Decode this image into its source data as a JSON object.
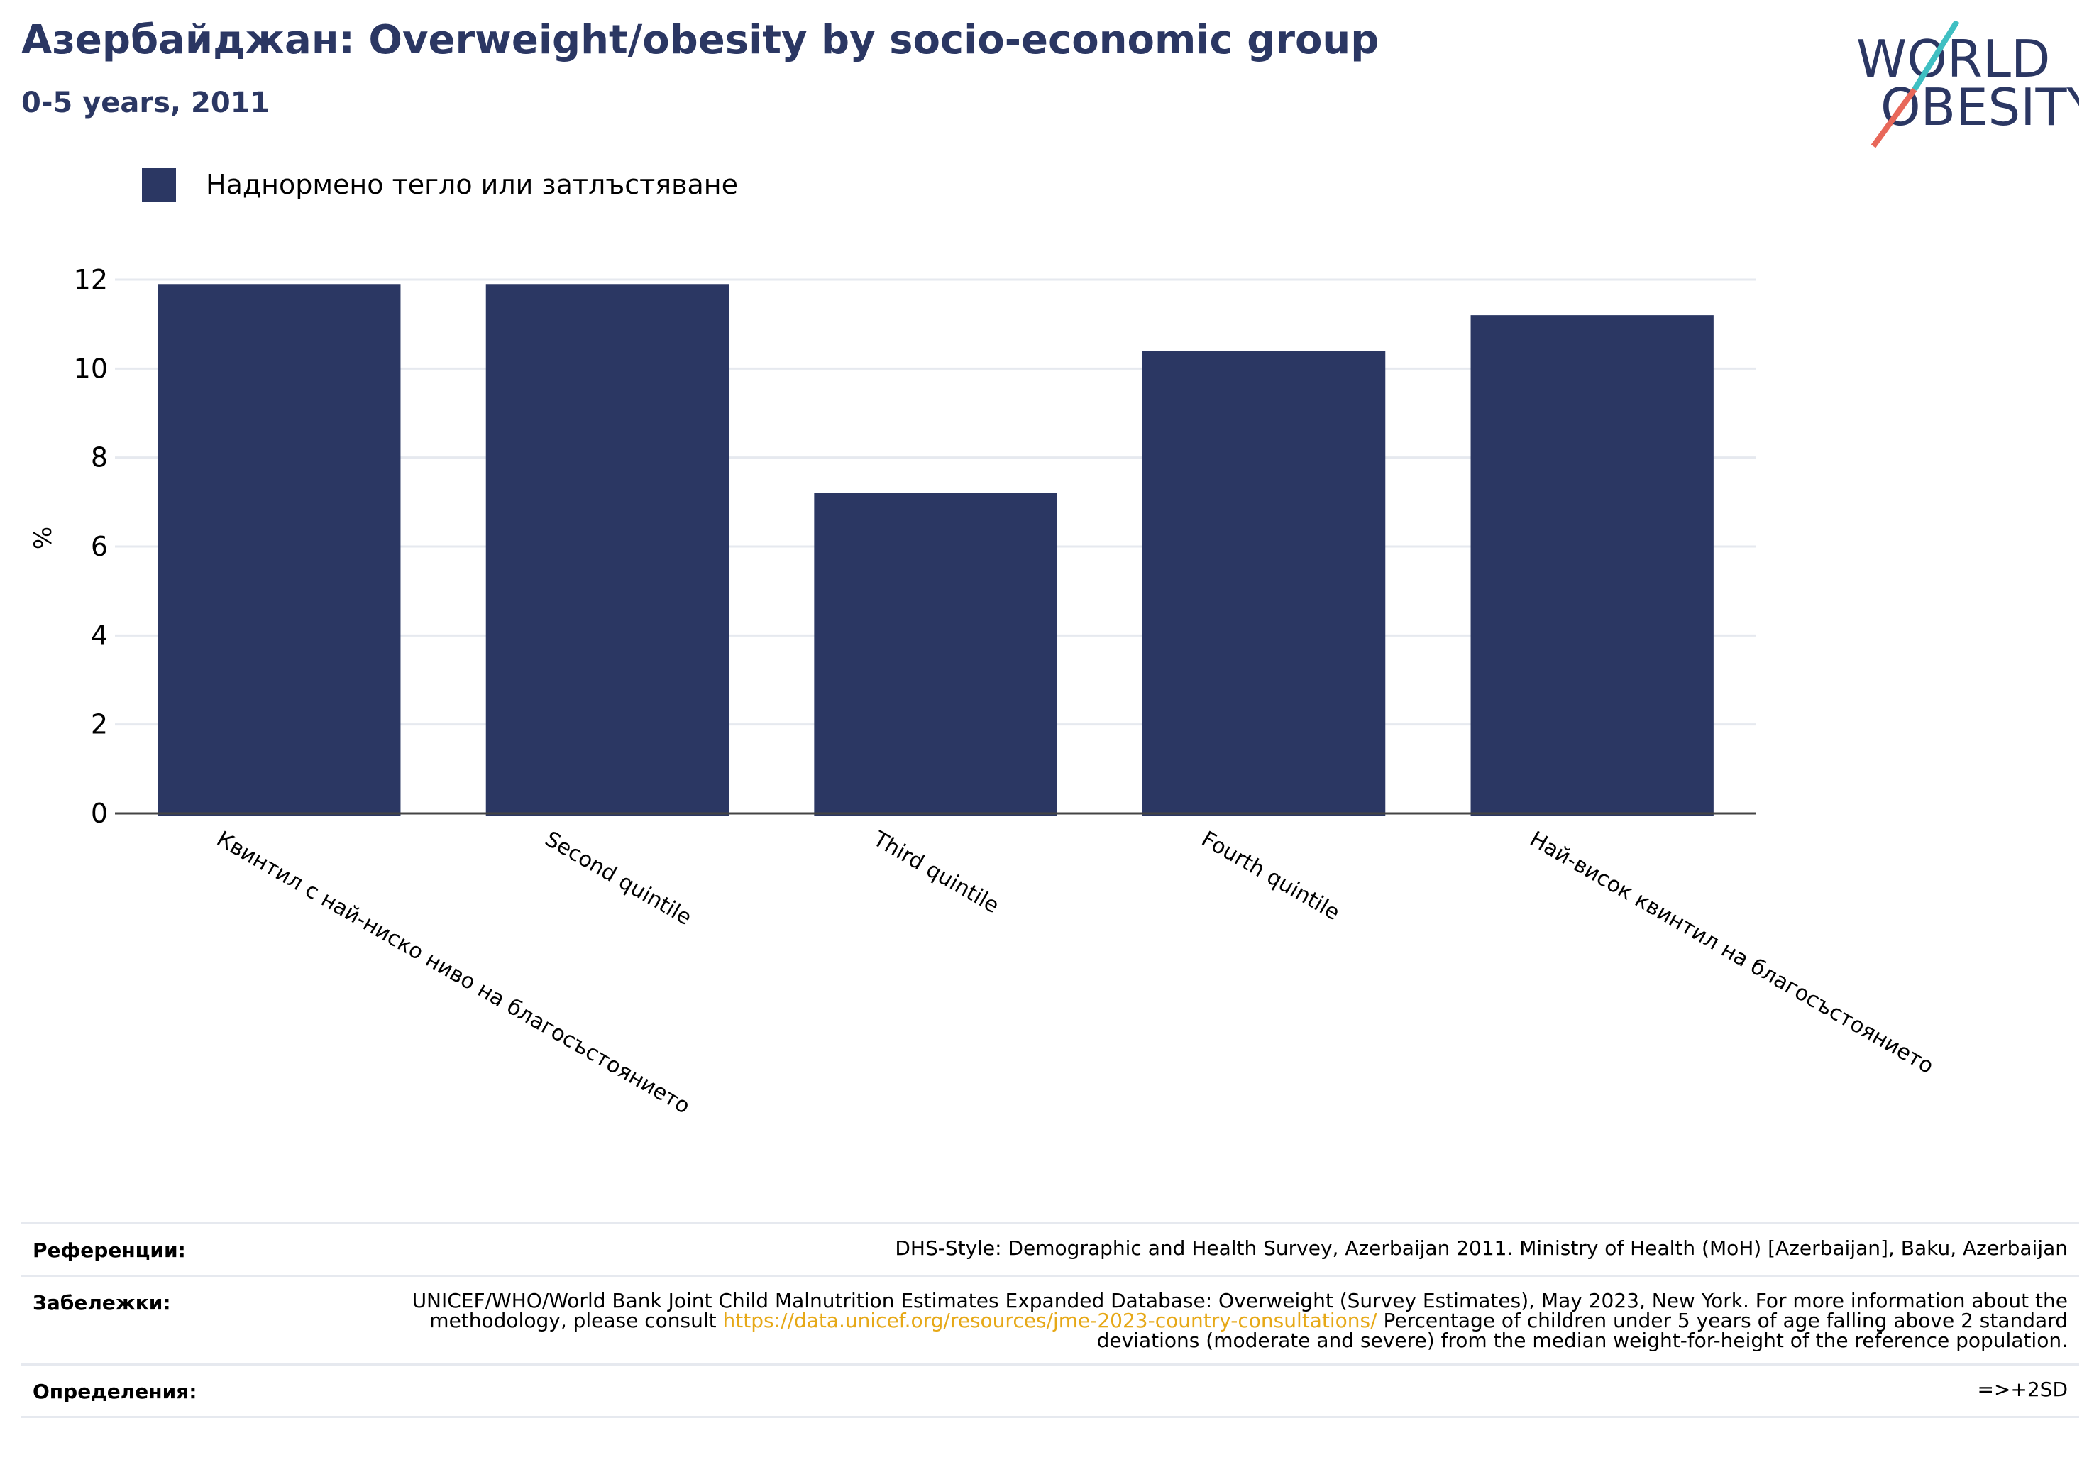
{
  "title": "Азербайджан: Overweight/obesity by socio-economic group",
  "subtitle": "0-5 years, 2011",
  "logo": {
    "line1": "WORLD",
    "line2": "OBESITY",
    "accent_colors": [
      "#3fbfc2",
      "#e8685a"
    ]
  },
  "colors": {
    "bar": "#2b3763",
    "title": "#2b3763",
    "link": "#e6a817",
    "grid": "#e6e9ef"
  },
  "chart_data": {
    "type": "bar",
    "categories": [
      "Квинтил с най-ниско ниво на благосъстоянието",
      "Second quintile",
      "Third quintile",
      "Fourth quintile",
      "Най-висок квинтил на благосъстоянието"
    ],
    "series": [
      {
        "name": "Наднормено тегло или затлъстяване",
        "values": [
          11.9,
          11.9,
          7.2,
          10.4,
          11.2
        ]
      }
    ],
    "ylabel": "%",
    "xlabel": "",
    "ylim": [
      0,
      12
    ],
    "yticks": [
      "0",
      "2",
      "4",
      "6",
      "8",
      "10",
      "12"
    ],
    "grid": true,
    "legend_position": "top-left"
  },
  "notes": {
    "references_label": "Референции:",
    "references_text": "DHS-Style: Demographic and Health Survey, Azerbaijan 2011. Ministry of Health (MoH) [Azerbaijan], Baku, Azerbaijan",
    "remarks_label": "Забележки:",
    "remarks_text_before": "UNICEF/WHO/World Bank Joint Child Malnutrition Estimates Expanded Database: Overweight (Survey Estimates), May 2023, New York. For more information about the methodology, please consult ",
    "remarks_link": "https://data.unicef.org/resources/jme-2023-country-consultations/",
    "remarks_text_after": " Percentage of children under 5 years of age falling above 2 standard deviations (moderate and severe) from the median weight-for-height of the reference population.",
    "definitions_label": "Определения:",
    "definitions_text": "=>+2SD"
  }
}
